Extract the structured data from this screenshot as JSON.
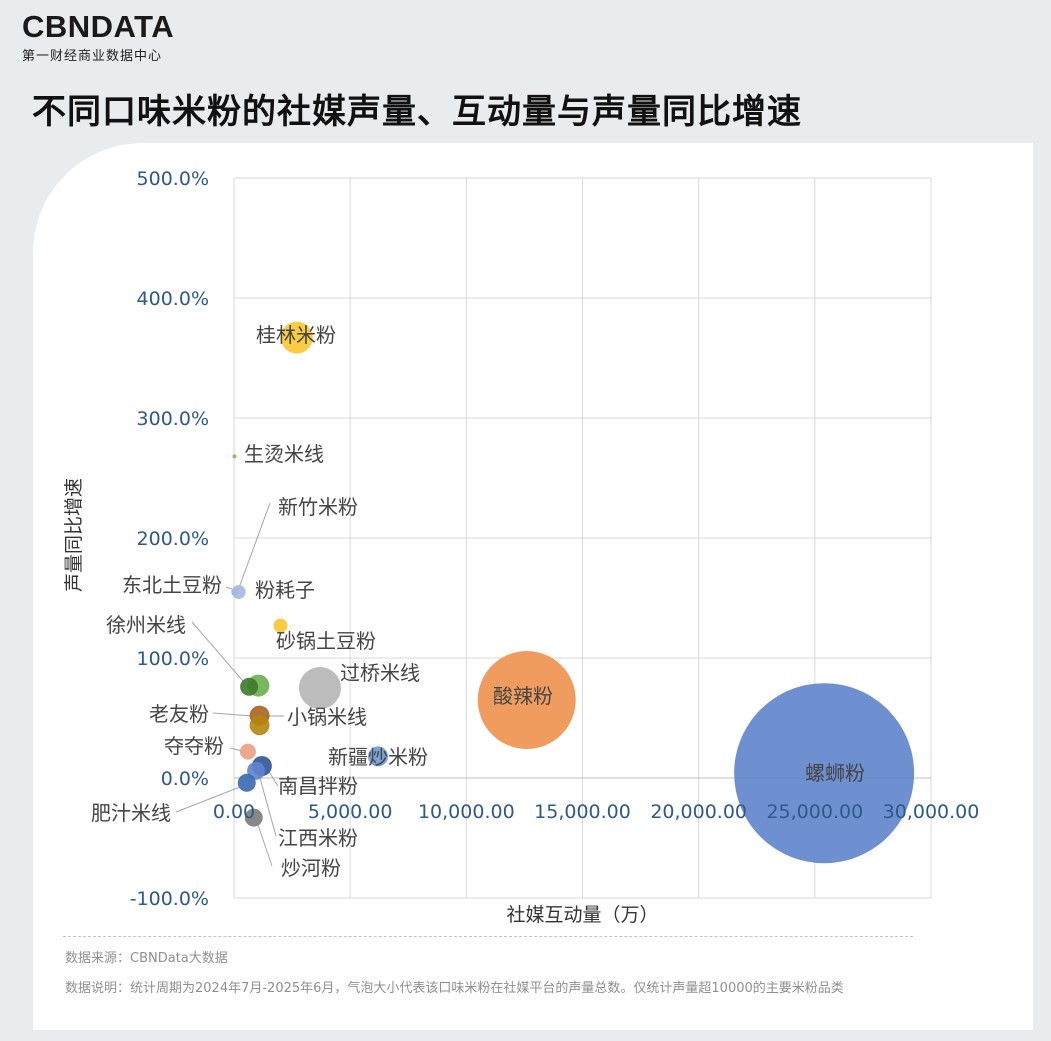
{
  "brand": {
    "logo": "CBNDATA",
    "subtitle": "第一财经商业数据中心"
  },
  "title": "不同口味米粉的社媒声量、互动量与声量同比增速",
  "footer": {
    "source": "数据来源：CBNData大数据",
    "note": "数据说明：统计周期为2024年7月-2025年6月，气泡大小代表该口味米粉在社媒平台的声量总数。仅统计声量超10000的主要米粉品类"
  },
  "chart_data": {
    "type": "scatter",
    "subtype": "bubble",
    "title": "",
    "xlabel": "社媒互动量（万）",
    "ylabel": "声量同比增速",
    "xlim": [
      0,
      30000
    ],
    "ylim": [
      -100,
      500
    ],
    "x_ticks": [
      "0.00",
      "5,000.00",
      "10,000.00",
      "15,000.00",
      "20,000.00",
      "25,000.00",
      "30,000.00"
    ],
    "y_ticks": [
      "-100.0%",
      "0.0%",
      "100.0%",
      "200.0%",
      "300.0%",
      "400.0%",
      "500.0%"
    ],
    "grid": true,
    "points": [
      {
        "name": "螺蛳粉",
        "x": 25400,
        "y": 4,
        "size": 90,
        "color": "#5e84cc"
      },
      {
        "name": "酸辣粉",
        "x": 12600,
        "y": 65,
        "size": 49,
        "color": "#f0914e"
      },
      {
        "name": "过桥米线",
        "x": 3700,
        "y": 75,
        "size": 21,
        "color": "#b5b5b5"
      },
      {
        "name": "桂林米粉",
        "x": 2700,
        "y": 367,
        "size": 16,
        "color": "#f8c62c"
      },
      {
        "name": "新疆炒米粉",
        "x": 6200,
        "y": 18,
        "size": 10,
        "color": "#6e97d3"
      },
      {
        "name": "生烫米线",
        "x": 20,
        "y": 268,
        "size": 2,
        "color": "#7cba4f"
      },
      {
        "name": "新竹米粉",
        "x": 50,
        "y": 155,
        "size": 4,
        "color": "#a5b9dd"
      },
      {
        "name": "东北土豆粉",
        "x": 200,
        "y": 155,
        "size": 7,
        "color": "#a5b9dd"
      },
      {
        "name": "粉耗子",
        "x": 2000,
        "y": 127,
        "size": 7,
        "color": "#f8c62c"
      },
      {
        "name": "砂锅土豆粉",
        "x": 1050,
        "y": 77,
        "size": 11,
        "color": "#6aaf4a"
      },
      {
        "name": "徐州米线",
        "x": 650,
        "y": 76,
        "size": 9,
        "color": "#3d7a2a"
      },
      {
        "name": "老友粉",
        "x": 1100,
        "y": 52,
        "size": 10,
        "color": "#a8641e"
      },
      {
        "name": "小锅米线",
        "x": 1100,
        "y": 44,
        "size": 10,
        "color": "#b5860f"
      },
      {
        "name": "夺夺粉",
        "x": 600,
        "y": 22,
        "size": 8,
        "color": "#ec9f80"
      },
      {
        "name": "南昌拌粉",
        "x": 1200,
        "y": 10,
        "size": 10,
        "color": "#2f5597"
      },
      {
        "name": "江西米粉",
        "x": 950,
        "y": 6,
        "size": 9,
        "color": "#5e84cc"
      },
      {
        "name": "肥汁米线",
        "x": 550,
        "y": -4,
        "size": 9,
        "color": "#3b68b0"
      },
      {
        "name": "炒河粉",
        "x": 850,
        "y": -33,
        "size": 9,
        "color": "#7b7b7b"
      }
    ]
  }
}
